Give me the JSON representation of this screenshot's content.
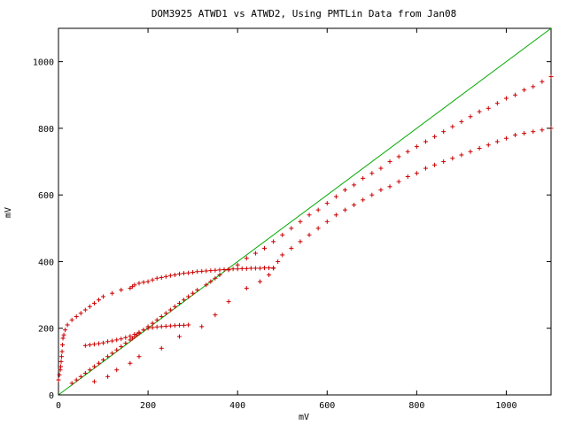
{
  "chart_data": {
    "type": "scatter",
    "title": "DOM3925 ATWD1 vs ATWD2, Using PMTLin Data from Jan08",
    "xlabel": "mV",
    "ylabel": "mV",
    "xlim": [
      0,
      1100
    ],
    "ylim": [
      0,
      1100
    ],
    "x_ticks": [
      0,
      200,
      400,
      600,
      800,
      1000
    ],
    "y_ticks": [
      0,
      200,
      400,
      600,
      800,
      1000
    ],
    "x_tick_labels": [
      "0",
      "200",
      "400",
      "600",
      "800",
      "1000"
    ],
    "y_tick_labels": [
      "0",
      "200",
      "400",
      "600",
      "800",
      "1000"
    ],
    "grid": false,
    "colors": {
      "points": "#cc0000",
      "reference_line": "#00aa00",
      "axes": "#000000"
    },
    "reference_line": {
      "x": [
        0,
        1100
      ],
      "y": [
        0,
        1100
      ]
    },
    "series": [
      {
        "marker": "+",
        "x": [
          0,
          2,
          4,
          5,
          6,
          7,
          8,
          9,
          10,
          12,
          15,
          20,
          30,
          40,
          50,
          60,
          70,
          80,
          90,
          100,
          120,
          140,
          160,
          165,
          170,
          180,
          190,
          200,
          210,
          220,
          230,
          240,
          250,
          260,
          270,
          280,
          290,
          300,
          310,
          320,
          330,
          340,
          350,
          360,
          370,
          380,
          390,
          400,
          410,
          420,
          430,
          440,
          450,
          460,
          470,
          480
        ],
        "y": [
          45,
          60,
          75,
          85,
          100,
          115,
          130,
          150,
          170,
          180,
          195,
          210,
          225,
          235,
          245,
          255,
          265,
          275,
          285,
          295,
          305,
          315,
          320,
          325,
          330,
          335,
          338,
          340,
          345,
          350,
          352,
          355,
          358,
          360,
          363,
          365,
          366,
          368,
          370,
          371,
          372,
          373,
          374,
          375,
          376,
          377,
          378,
          378,
          379,
          379,
          380,
          380,
          380,
          381,
          381,
          381
        ]
      },
      {
        "marker": "+",
        "x": [
          30,
          40,
          50,
          60,
          70,
          80,
          90,
          100,
          110,
          120,
          130,
          140,
          150,
          160,
          165,
          170,
          175,
          180,
          190,
          200,
          210,
          220,
          230,
          240,
          250,
          260,
          270,
          280,
          290,
          300,
          310,
          330,
          340,
          350,
          360,
          380,
          400,
          420,
          440,
          460,
          480,
          500,
          520,
          540,
          560,
          580,
          600,
          620,
          640,
          660,
          680,
          700,
          720,
          740,
          760,
          780,
          800,
          820,
          840,
          860,
          880,
          900,
          920,
          940,
          960,
          980,
          1000,
          1020,
          1040,
          1060,
          1080,
          1100
        ],
        "y": [
          35,
          45,
          55,
          65,
          75,
          85,
          95,
          105,
          115,
          125,
          135,
          145,
          155,
          165,
          170,
          175,
          180,
          185,
          195,
          205,
          215,
          225,
          235,
          245,
          255,
          265,
          275,
          285,
          295,
          305,
          315,
          330,
          340,
          350,
          360,
          375,
          390,
          410,
          425,
          440,
          460,
          480,
          500,
          520,
          540,
          555,
          575,
          595,
          615,
          630,
          650,
          665,
          680,
          700,
          715,
          730,
          745,
          760,
          775,
          790,
          805,
          820,
          835,
          850,
          860,
          875,
          890,
          900,
          915,
          925,
          940,
          955
        ]
      },
      {
        "marker": "+",
        "x": [
          60,
          70,
          80,
          90,
          100,
          110,
          120,
          130,
          140,
          150,
          160,
          170,
          180,
          190,
          200,
          210,
          220,
          230,
          240,
          250,
          260,
          270,
          280,
          290
        ],
        "y": [
          148,
          150,
          152,
          154,
          156,
          160,
          162,
          165,
          168,
          172,
          176,
          182,
          188,
          195,
          200,
          202,
          204,
          205,
          206,
          207,
          208,
          209,
          209,
          210
        ]
      },
      {
        "marker": "+",
        "x": [
          80,
          110,
          130,
          160,
          180,
          230,
          270,
          320,
          350,
          380,
          420,
          450,
          470,
          480,
          490,
          500,
          520,
          540,
          560,
          580,
          600,
          620,
          640,
          660,
          680,
          700,
          720,
          740,
          760,
          780,
          800,
          820,
          840,
          860,
          880,
          900,
          920,
          940,
          960,
          980,
          1000,
          1020,
          1040,
          1060,
          1080,
          1100
        ],
        "y": [
          40,
          55,
          75,
          95,
          115,
          140,
          175,
          205,
          240,
          280,
          320,
          340,
          360,
          380,
          400,
          420,
          440,
          460,
          480,
          500,
          520,
          540,
          555,
          570,
          585,
          600,
          615,
          625,
          640,
          655,
          665,
          680,
          690,
          700,
          710,
          720,
          730,
          740,
          750,
          760,
          770,
          780,
          785,
          790,
          795,
          800
        ]
      }
    ]
  }
}
